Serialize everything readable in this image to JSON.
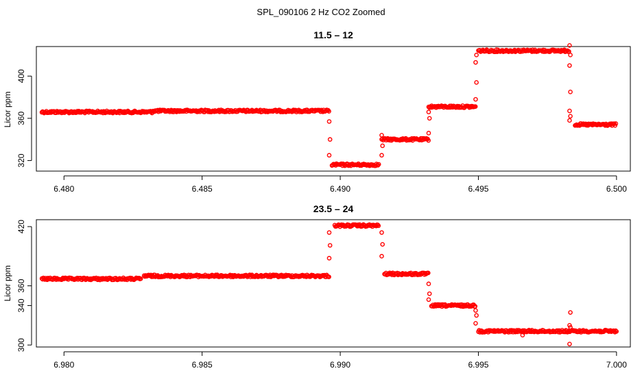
{
  "figure": {
    "title": "SPL_090106  2 Hz CO2 Zoomed"
  },
  "style": {
    "point_color": "#ff0000",
    "axis_color": "#000000",
    "background": "#ffffff"
  },
  "chart_data": [
    {
      "type": "scatter",
      "title": "11.5 – 12",
      "xlabel": "",
      "ylabel": "Licor ppm",
      "xlim": [
        6.479,
        6.5005
      ],
      "ylim": [
        310,
        428
      ],
      "xticks": [
        6.48,
        6.485,
        6.49,
        6.495,
        6.5
      ],
      "xtick_labels": [
        "6.480",
        "6.485",
        "6.490",
        "6.495",
        "6.500"
      ],
      "yticks": [
        320,
        360,
        400
      ],
      "ytick_labels": [
        "320",
        "360",
        "400"
      ],
      "marker": "open-circle",
      "grid": false,
      "segments": [
        {
          "x_start": 6.4792,
          "x_end": 6.4832,
          "y": 366
        },
        {
          "x_start": 6.4832,
          "x_end": 6.4896,
          "y": 367
        },
        {
          "x_start": 6.4897,
          "x_end": 6.4914,
          "y": 316
        },
        {
          "x_start": 6.4915,
          "x_end": 6.4932,
          "y": 340
        },
        {
          "x_start": 6.4932,
          "x_end": 6.4949,
          "y": 371
        },
        {
          "x_start": 6.495,
          "x_end": 6.4983,
          "y": 424
        },
        {
          "x_start": 6.4985,
          "x_end": 6.5,
          "y": 354
        }
      ],
      "transitions": [
        {
          "x": 6.4896,
          "y": [
            357,
            340,
            325
          ]
        },
        {
          "x": 6.4915,
          "y": [
            325,
            334,
            344
          ]
        },
        {
          "x": 6.4932,
          "y": [
            346,
            360,
            366
          ]
        },
        {
          "x": 6.4949,
          "y": [
            378,
            394,
            413,
            420
          ]
        },
        {
          "x": 6.4983,
          "y": [
            429,
            420,
            410,
            385,
            367,
            362,
            358
          ]
        }
      ]
    },
    {
      "type": "scatter",
      "title": "23.5 – 24",
      "xlabel": "",
      "ylabel": "Licor ppm",
      "xlim": [
        6.979,
        7.0005
      ],
      "ylim": [
        298,
        427
      ],
      "xticks": [
        6.98,
        6.985,
        6.99,
        6.995,
        7.0
      ],
      "xtick_labels": [
        "6.980",
        "6.985",
        "6.990",
        "6.995",
        "7.000"
      ],
      "yticks": [
        300,
        340,
        360,
        420
      ],
      "ytick_labels": [
        "300",
        "340",
        "360",
        "420"
      ],
      "marker": "open-circle",
      "grid": false,
      "segments": [
        {
          "x_start": 6.9792,
          "x_end": 6.9828,
          "y": 367
        },
        {
          "x_start": 6.9829,
          "x_end": 6.9896,
          "y": 370
        },
        {
          "x_start": 6.9898,
          "x_end": 6.9914,
          "y": 421
        },
        {
          "x_start": 6.9916,
          "x_end": 6.9932,
          "y": 372
        },
        {
          "x_start": 6.9933,
          "x_end": 6.9949,
          "y": 340
        },
        {
          "x_start": 6.995,
          "x_end": 7.0,
          "y": 314
        }
      ],
      "transitions": [
        {
          "x": 6.9896,
          "y": [
            388,
            401,
            414
          ]
        },
        {
          "x": 6.9915,
          "y": [
            414,
            402,
            390
          ]
        },
        {
          "x": 6.9932,
          "y": [
            362,
            352,
            346
          ]
        },
        {
          "x": 6.9949,
          "y": [
            335,
            330,
            322
          ]
        },
        {
          "x": 6.9966,
          "y": [
            310
          ]
        },
        {
          "x": 6.9983,
          "y": [
            301,
            333,
            320,
            318
          ]
        }
      ]
    }
  ]
}
